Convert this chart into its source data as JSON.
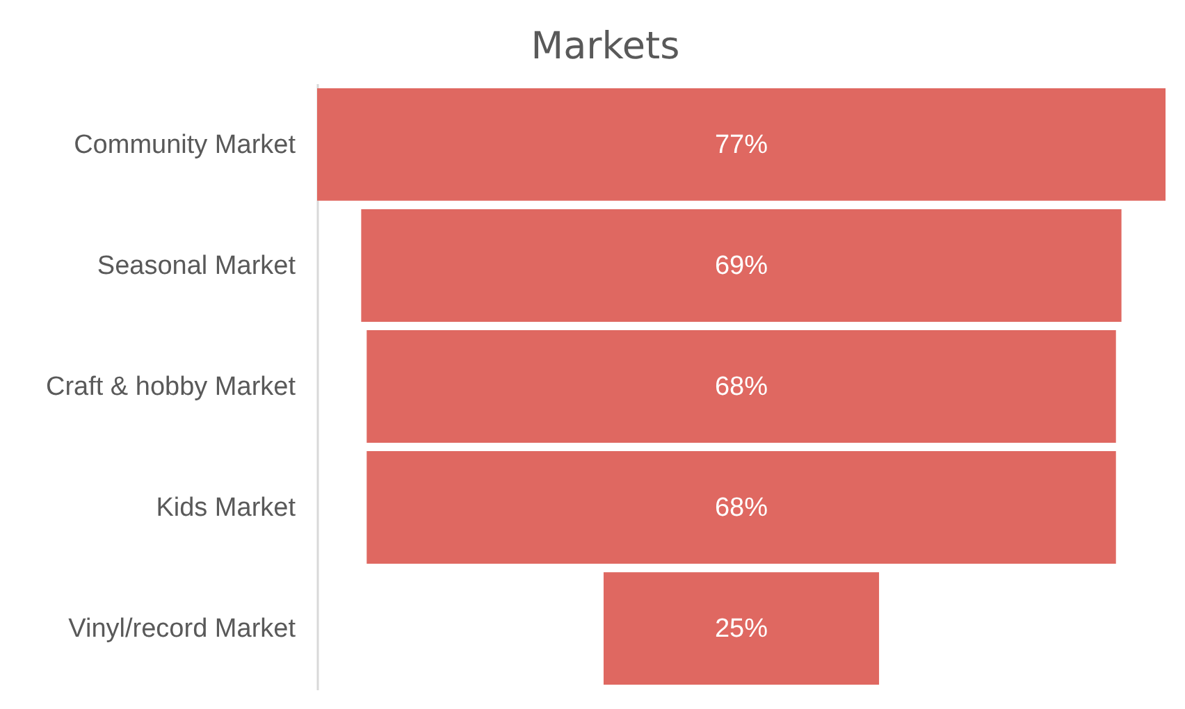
{
  "chart_data": {
    "type": "other",
    "title": "Markets",
    "categories": [
      "Community Market",
      "Seasonal Market",
      "Craft & hobby Market",
      "Kids Market",
      "Vinyl/record Market"
    ],
    "values": [
      77,
      69,
      68,
      68,
      25
    ],
    "value_labels": [
      "77%",
      "69%",
      "68%",
      "68%",
      "25%"
    ],
    "color": "#df6861"
  }
}
